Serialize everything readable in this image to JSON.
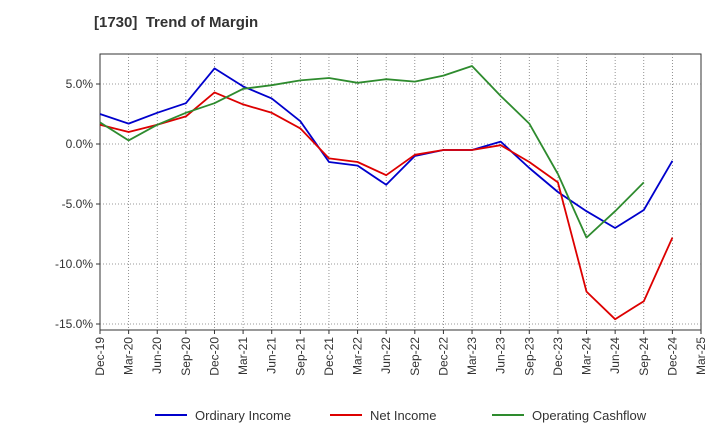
{
  "chart_data": {
    "type": "line",
    "title": "[1730]  Trend of Margin",
    "x": [
      "Dec-19",
      "Mar-20",
      "Jun-20",
      "Sep-20",
      "Dec-20",
      "Mar-21",
      "Jun-21",
      "Sep-21",
      "Dec-21",
      "Mar-22",
      "Jun-22",
      "Sep-22",
      "Dec-22",
      "Mar-23",
      "Jun-23",
      "Sep-23",
      "Dec-23",
      "Mar-24",
      "Jun-24",
      "Sep-24",
      "Dec-24",
      "Mar-25"
    ],
    "y_ticks": [
      "5.0%",
      "0.0%",
      "-5.0%",
      "-10.0%",
      "-15.0%"
    ],
    "y_tick_values": [
      5,
      0,
      -5,
      -10,
      -15
    ],
    "ylim": [
      -15.5,
      7.5
    ],
    "grid": true,
    "legend_position": "bottom",
    "series": [
      {
        "name": "Ordinary Income",
        "color": "#0000cc",
        "values": [
          2.5,
          1.7,
          2.6,
          3.4,
          6.3,
          4.8,
          3.8,
          1.9,
          -1.5,
          -1.8,
          -3.4,
          -1.0,
          -0.5,
          -0.5,
          0.2,
          -2.0,
          -4.0,
          -5.6,
          -7.0,
          -5.5,
          -1.4,
          null
        ]
      },
      {
        "name": "Net Income",
        "color": "#dd0000",
        "values": [
          1.6,
          1.0,
          1.6,
          2.3,
          4.3,
          3.3,
          2.6,
          1.3,
          -1.2,
          -1.5,
          -2.6,
          -0.9,
          -0.5,
          -0.5,
          -0.1,
          -1.5,
          -3.2,
          -12.3,
          -14.6,
          -13.1,
          -7.8,
          null
        ]
      },
      {
        "name": "Operating Cashflow",
        "color": "#2e8b2e",
        "values": [
          1.8,
          0.3,
          1.6,
          2.6,
          3.4,
          4.6,
          4.9,
          5.3,
          5.5,
          5.1,
          5.4,
          5.2,
          5.7,
          6.5,
          4.0,
          1.7,
          -2.5,
          -7.8,
          -5.6,
          -3.2,
          null,
          null
        ]
      }
    ]
  }
}
